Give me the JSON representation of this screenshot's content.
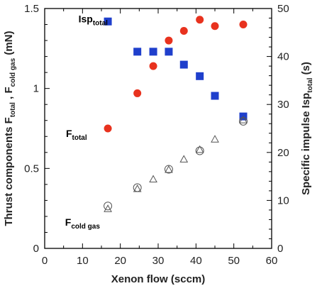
{
  "chart_data": {
    "type": "scatter",
    "xlabel": "Xenon flow (sccm)",
    "ylabel_left": {
      "parts": [
        {
          "t": "Thrust components F",
          "sub": false
        },
        {
          "t": "total",
          "sub": true
        },
        {
          "t": " , F",
          "sub": false
        },
        {
          "t": "cold gas",
          "sub": true
        },
        {
          "t": " (mN)",
          "sub": false
        }
      ]
    },
    "ylabel_right": {
      "parts": [
        {
          "t": "Specific impulse Isp",
          "sub": false
        },
        {
          "t": "total",
          "sub": true
        },
        {
          "t": " (s)",
          "sub": false
        }
      ]
    },
    "xlim": [
      0,
      60
    ],
    "ylim_left": [
      0,
      1.5
    ],
    "ylim_right": [
      0,
      50
    ],
    "x_ticks": [
      0,
      10,
      20,
      30,
      40,
      50,
      60
    ],
    "x_tick_labels": [
      "0",
      "10",
      "20",
      "30",
      "40",
      "50",
      "60"
    ],
    "y_left_ticks": [
      0,
      0.5,
      1,
      1.5
    ],
    "y_left_tick_labels": [
      "0",
      "0.5",
      "1",
      "1.5"
    ],
    "y_right_ticks": [
      0,
      10,
      20,
      30,
      40,
      50
    ],
    "y_right_tick_labels": [
      "0",
      "10",
      "20",
      "30",
      "40",
      "50"
    ],
    "grid": false,
    "series": [
      {
        "name": "F_total",
        "axis": "left",
        "marker": "filled-circle",
        "color": "#e8321e",
        "x": [
          16.7,
          24.5,
          28.7,
          32.8,
          36.8,
          41.0,
          45.0,
          52.5
        ],
        "y": [
          0.75,
          0.97,
          1.14,
          1.3,
          1.36,
          1.43,
          1.39,
          1.4
        ]
      },
      {
        "name": "Isp_total",
        "axis": "right",
        "marker": "filled-square",
        "color": "#1f3fcc",
        "x": [
          16.7,
          24.5,
          28.7,
          32.8,
          36.8,
          41.0,
          45.0,
          52.5
        ],
        "y": [
          47.3,
          41.0,
          41.0,
          41.0,
          38.3,
          35.9,
          31.8,
          27.5
        ]
      },
      {
        "name": "F_cold_gas_open_circle",
        "axis": "left",
        "marker": "open-circle",
        "color": "#555555",
        "x": [
          16.7,
          24.5,
          32.8,
          41.0,
          52.5
        ],
        "y": [
          0.265,
          0.38,
          0.495,
          0.61,
          0.795
        ]
      },
      {
        "name": "F_cold_gas_open_triangle",
        "axis": "left",
        "marker": "open-triangle",
        "color": "#555555",
        "x": [
          16.7,
          24.5,
          28.7,
          32.8,
          36.8,
          41.0,
          45.0,
          52.5
        ],
        "y": [
          0.245,
          0.37,
          0.43,
          0.49,
          0.555,
          0.615,
          0.68,
          0.8
        ]
      }
    ],
    "annotations": [
      {
        "id": "isp-total",
        "main": "Isp",
        "sub": "total",
        "x": 12.8,
        "y_left": 1.435
      },
      {
        "id": "f-total",
        "main": "F",
        "sub": "total",
        "x": 8.4,
        "y_left": 0.72
      },
      {
        "id": "f-cold-gas",
        "main": "F",
        "sub": "cold gas",
        "x": 10.0,
        "y_left": 0.165
      }
    ]
  }
}
